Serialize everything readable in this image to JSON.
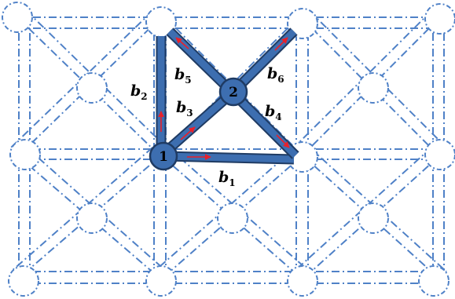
{
  "diagram": {
    "nodes": [
      {
        "id": "1",
        "label": "1"
      },
      {
        "id": "2",
        "label": "2"
      }
    ],
    "bonds": [
      {
        "id": "b1",
        "symbol": "b",
        "index": "1",
        "from": "1",
        "to": "corner-right"
      },
      {
        "id": "b2",
        "symbol": "b",
        "index": "2",
        "from": "1",
        "to": "corner-top"
      },
      {
        "id": "b3",
        "symbol": "b",
        "index": "3",
        "from": "1",
        "to": "2"
      },
      {
        "id": "b4",
        "symbol": "b",
        "index": "4",
        "from": "2",
        "to": "corner-right"
      },
      {
        "id": "b5",
        "symbol": "b",
        "index": "5",
        "from": "2",
        "to": "corner-top"
      },
      {
        "id": "b6",
        "symbol": "b",
        "index": "6",
        "from": "2",
        "to": "corner-top-right"
      }
    ],
    "colors": {
      "lattice": "#4f81c7",
      "bond": "#3d6eb0",
      "arrow": "#e8212b"
    }
  }
}
